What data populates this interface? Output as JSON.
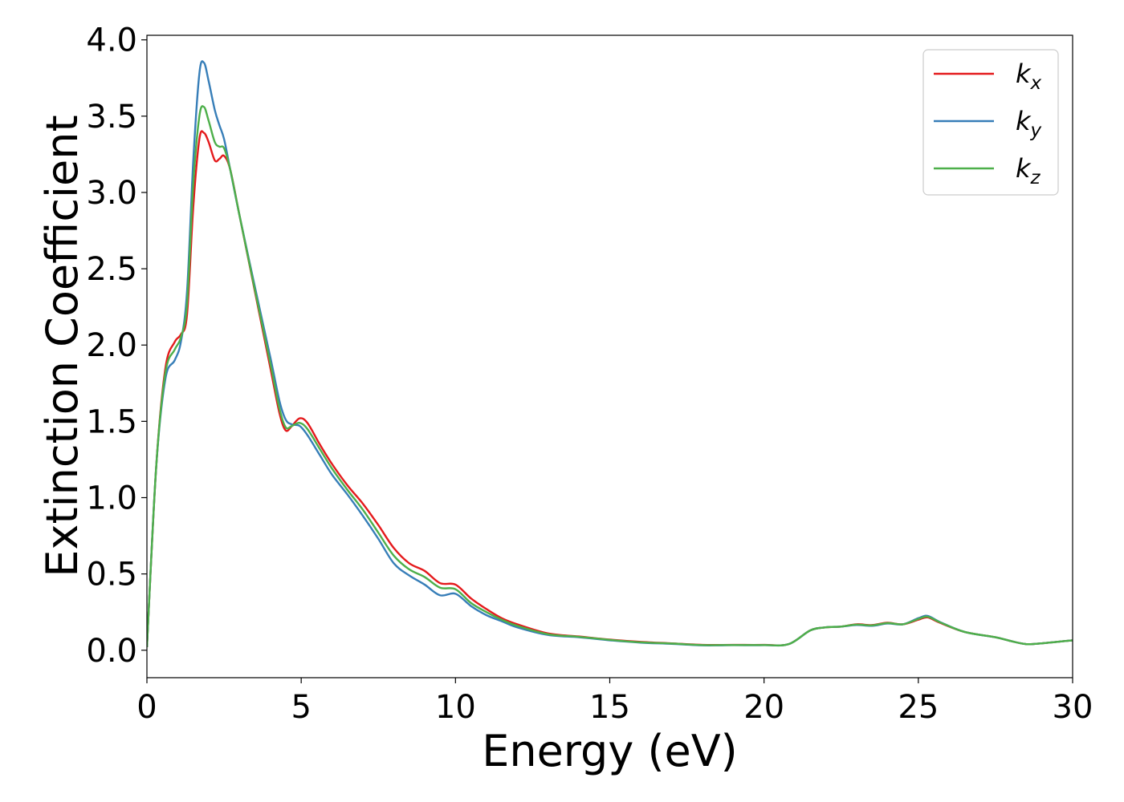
{
  "chart_data": {
    "type": "line",
    "title": "",
    "xlabel": "Energy (eV)",
    "ylabel": "Extinction Coefficient",
    "xlim": [
      0,
      30
    ],
    "ylim": [
      -0.18,
      4.03
    ],
    "xticks": [
      0,
      5,
      10,
      15,
      20,
      25,
      30
    ],
    "xtick_labels": [
      "0",
      "5",
      "10",
      "15",
      "20",
      "25",
      "30"
    ],
    "yticks": [
      0.0,
      0.5,
      1.0,
      1.5,
      2.0,
      2.5,
      3.0,
      3.5,
      4.0
    ],
    "ytick_labels": [
      "0.0",
      "0.5",
      "1.0",
      "1.5",
      "2.0",
      "2.5",
      "3.0",
      "3.5",
      "4.0"
    ],
    "grid": false,
    "legend_position": "top-right",
    "series": [
      {
        "name": "k_x",
        "legend_base": "k",
        "legend_sub": "x",
        "color": "#e41a1c",
        "points": [
          [
            0,
            0.02
          ],
          [
            0.3,
            1.2
          ],
          [
            0.6,
            1.85
          ],
          [
            0.9,
            2.02
          ],
          [
            1.1,
            2.07
          ],
          [
            1.3,
            2.2
          ],
          [
            1.5,
            2.9
          ],
          [
            1.7,
            3.35
          ],
          [
            1.85,
            3.39
          ],
          [
            2.0,
            3.33
          ],
          [
            2.2,
            3.21
          ],
          [
            2.35,
            3.22
          ],
          [
            2.5,
            3.24
          ],
          [
            2.7,
            3.15
          ],
          [
            3.0,
            2.85
          ],
          [
            3.5,
            2.35
          ],
          [
            4.0,
            1.85
          ],
          [
            4.3,
            1.55
          ],
          [
            4.5,
            1.44
          ],
          [
            4.7,
            1.47
          ],
          [
            4.95,
            1.52
          ],
          [
            5.2,
            1.49
          ],
          [
            5.6,
            1.35
          ],
          [
            6.0,
            1.22
          ],
          [
            6.5,
            1.08
          ],
          [
            7.0,
            0.96
          ],
          [
            7.5,
            0.82
          ],
          [
            8.0,
            0.67
          ],
          [
            8.5,
            0.57
          ],
          [
            9.0,
            0.52
          ],
          [
            9.5,
            0.44
          ],
          [
            10.0,
            0.43
          ],
          [
            10.5,
            0.34
          ],
          [
            11.0,
            0.27
          ],
          [
            11.5,
            0.21
          ],
          [
            12.0,
            0.17
          ],
          [
            13.0,
            0.11
          ],
          [
            14.0,
            0.09
          ],
          [
            15.0,
            0.07
          ],
          [
            16.0,
            0.055
          ],
          [
            17.0,
            0.045
          ],
          [
            18.0,
            0.035
          ],
          [
            19.0,
            0.035
          ],
          [
            20.0,
            0.035
          ],
          [
            20.8,
            0.04
          ],
          [
            21.5,
            0.13
          ],
          [
            22.0,
            0.15
          ],
          [
            22.5,
            0.155
          ],
          [
            23.0,
            0.17
          ],
          [
            23.5,
            0.165
          ],
          [
            24.0,
            0.18
          ],
          [
            24.5,
            0.17
          ],
          [
            25.0,
            0.2
          ],
          [
            25.3,
            0.215
          ],
          [
            25.7,
            0.18
          ],
          [
            26.5,
            0.12
          ],
          [
            27.5,
            0.085
          ],
          [
            28.0,
            0.06
          ],
          [
            28.5,
            0.04
          ],
          [
            29.0,
            0.045
          ],
          [
            29.5,
            0.055
          ],
          [
            30.0,
            0.065
          ]
        ]
      },
      {
        "name": "k_y",
        "legend_base": "k",
        "legend_sub": "y",
        "color": "#377eb8",
        "points": [
          [
            0,
            0.02
          ],
          [
            0.3,
            1.2
          ],
          [
            0.6,
            1.78
          ],
          [
            0.9,
            1.9
          ],
          [
            1.1,
            2.02
          ],
          [
            1.3,
            2.35
          ],
          [
            1.5,
            3.2
          ],
          [
            1.7,
            3.78
          ],
          [
            1.85,
            3.85
          ],
          [
            2.0,
            3.73
          ],
          [
            2.2,
            3.54
          ],
          [
            2.35,
            3.44
          ],
          [
            2.5,
            3.35
          ],
          [
            2.7,
            3.15
          ],
          [
            3.0,
            2.85
          ],
          [
            3.5,
            2.38
          ],
          [
            4.0,
            1.92
          ],
          [
            4.3,
            1.63
          ],
          [
            4.5,
            1.51
          ],
          [
            4.7,
            1.48
          ],
          [
            4.95,
            1.47
          ],
          [
            5.2,
            1.41
          ],
          [
            5.6,
            1.28
          ],
          [
            6.0,
            1.15
          ],
          [
            6.5,
            1.02
          ],
          [
            7.0,
            0.88
          ],
          [
            7.5,
            0.73
          ],
          [
            8.0,
            0.57
          ],
          [
            8.5,
            0.49
          ],
          [
            9.0,
            0.43
          ],
          [
            9.5,
            0.36
          ],
          [
            10.0,
            0.37
          ],
          [
            10.5,
            0.29
          ],
          [
            11.0,
            0.23
          ],
          [
            11.5,
            0.19
          ],
          [
            12.0,
            0.15
          ],
          [
            13.0,
            0.1
          ],
          [
            14.0,
            0.085
          ],
          [
            15.0,
            0.065
          ],
          [
            16.0,
            0.05
          ],
          [
            17.0,
            0.042
          ],
          [
            18.0,
            0.032
          ],
          [
            19.0,
            0.033
          ],
          [
            20.0,
            0.033
          ],
          [
            20.8,
            0.04
          ],
          [
            21.5,
            0.13
          ],
          [
            22.0,
            0.15
          ],
          [
            22.5,
            0.155
          ],
          [
            23.0,
            0.165
          ],
          [
            23.5,
            0.16
          ],
          [
            24.0,
            0.175
          ],
          [
            24.5,
            0.17
          ],
          [
            25.0,
            0.21
          ],
          [
            25.3,
            0.225
          ],
          [
            25.7,
            0.185
          ],
          [
            26.5,
            0.12
          ],
          [
            27.5,
            0.085
          ],
          [
            28.0,
            0.06
          ],
          [
            28.5,
            0.04
          ],
          [
            29.0,
            0.045
          ],
          [
            29.5,
            0.055
          ],
          [
            30.0,
            0.065
          ]
        ]
      },
      {
        "name": "k_z",
        "legend_base": "k",
        "legend_sub": "z",
        "color": "#4daf4a",
        "points": [
          [
            0,
            0.02
          ],
          [
            0.3,
            1.2
          ],
          [
            0.6,
            1.82
          ],
          [
            0.9,
            1.97
          ],
          [
            1.1,
            2.05
          ],
          [
            1.3,
            2.27
          ],
          [
            1.5,
            3.05
          ],
          [
            1.7,
            3.5
          ],
          [
            1.85,
            3.56
          ],
          [
            2.0,
            3.47
          ],
          [
            2.2,
            3.33
          ],
          [
            2.35,
            3.3
          ],
          [
            2.5,
            3.29
          ],
          [
            2.7,
            3.15
          ],
          [
            3.0,
            2.85
          ],
          [
            3.5,
            2.36
          ],
          [
            4.0,
            1.88
          ],
          [
            4.3,
            1.58
          ],
          [
            4.5,
            1.46
          ],
          [
            4.7,
            1.47
          ],
          [
            4.95,
            1.49
          ],
          [
            5.2,
            1.45
          ],
          [
            5.6,
            1.32
          ],
          [
            6.0,
            1.19
          ],
          [
            6.5,
            1.05
          ],
          [
            7.0,
            0.92
          ],
          [
            7.5,
            0.77
          ],
          [
            8.0,
            0.62
          ],
          [
            8.5,
            0.53
          ],
          [
            9.0,
            0.48
          ],
          [
            9.5,
            0.41
          ],
          [
            10.0,
            0.4
          ],
          [
            10.5,
            0.31
          ],
          [
            11.0,
            0.25
          ],
          [
            11.5,
            0.2
          ],
          [
            12.0,
            0.16
          ],
          [
            13.0,
            0.105
          ],
          [
            14.0,
            0.088
          ],
          [
            15.0,
            0.068
          ],
          [
            16.0,
            0.052
          ],
          [
            17.0,
            0.044
          ],
          [
            18.0,
            0.034
          ],
          [
            19.0,
            0.034
          ],
          [
            20.0,
            0.034
          ],
          [
            20.8,
            0.04
          ],
          [
            21.5,
            0.13
          ],
          [
            22.0,
            0.15
          ],
          [
            22.5,
            0.155
          ],
          [
            23.0,
            0.168
          ],
          [
            23.5,
            0.163
          ],
          [
            24.0,
            0.178
          ],
          [
            24.5,
            0.17
          ],
          [
            25.0,
            0.205
          ],
          [
            25.3,
            0.22
          ],
          [
            25.7,
            0.183
          ],
          [
            26.5,
            0.12
          ],
          [
            27.5,
            0.085
          ],
          [
            28.0,
            0.06
          ],
          [
            28.5,
            0.04
          ],
          [
            29.0,
            0.045
          ],
          [
            29.5,
            0.055
          ],
          [
            30.0,
            0.065
          ]
        ]
      }
    ]
  }
}
